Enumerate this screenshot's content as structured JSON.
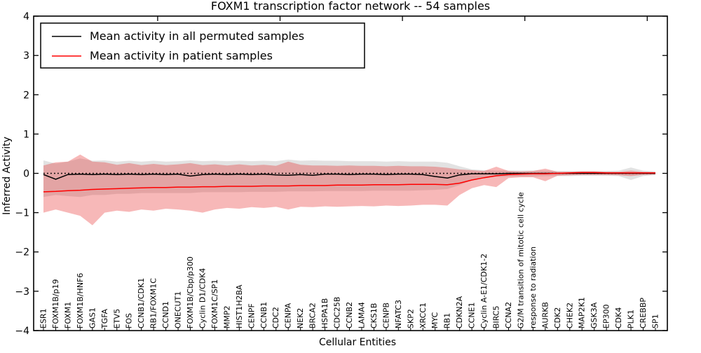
{
  "title": "FOXM1 transcription factor network -- 54 samples",
  "axes": {
    "xlabel": "Cellular Entities",
    "ylabel": "Inferred Activity"
  },
  "legend": {
    "position": "upper left",
    "items": [
      {
        "label": "Mean activity in all permuted samples",
        "color": "#000000"
      },
      {
        "label": "Mean activity in patient samples",
        "color": "#ff0000"
      }
    ]
  },
  "chart_data": {
    "type": "line",
    "title": "FOXM1 transcription factor network -- 54 samples",
    "xlabel": "Cellular Entities",
    "ylabel": "Inferred Activity",
    "ylim": [
      -4,
      4
    ],
    "yticks": [
      4,
      3,
      2,
      1,
      0,
      -1,
      -2,
      -3,
      -4
    ],
    "ytick_labels": [
      "4",
      "3",
      "2",
      "1",
      "0",
      "−1",
      "−2",
      "−3",
      "−4"
    ],
    "grid": false,
    "legend_position": "upper left",
    "zero_reference_line": 0,
    "categories": [
      "ESR1",
      "FOXM1B/p19",
      "FOXM1",
      "FOXM1B/HNF6",
      "GAS1",
      "TGFA",
      "ETV5",
      "FOS",
      "CCNB1/CDK1",
      "RB1/FOXM1C",
      "CCND1",
      "ONECUT1",
      "FOXM1B/Cbp/p300",
      "Cyclin D1/CDK4",
      "FOXM1C/SP1",
      "MMP2",
      "HIST1H2BA",
      "CENPF",
      "CCNB1",
      "CDC2",
      "CENPA",
      "NEK2",
      "BRCA2",
      "HSPA1B",
      "CDC25B",
      "CCNB2",
      "LAMA4",
      "CKS1B",
      "CENPB",
      "NFATC3",
      "SKP2",
      "XRCC1",
      "MYC",
      "RB1",
      "CDKN2A",
      "CCNE1",
      "Cyclin A-E1/CDK1-2",
      "BIRC5",
      "CCNA2",
      "G2/M transition of mitotic cell cycle",
      "response to radiation",
      "AURKB",
      "CDK2",
      "CHEK2",
      "MAP2K1",
      "GSK3A",
      "EP300",
      "CDK4",
      "PLK1",
      "CREBBP",
      "SP1"
    ],
    "series": [
      {
        "name": "Mean activity in all permuted samples",
        "color": "#000000",
        "values": [
          -0.03,
          -0.15,
          -0.03,
          -0.02,
          -0.03,
          -0.02,
          -0.03,
          -0.02,
          -0.03,
          -0.02,
          -0.03,
          -0.02,
          -0.07,
          -0.03,
          -0.02,
          -0.03,
          -0.02,
          -0.03,
          -0.02,
          -0.04,
          -0.05,
          -0.03,
          -0.05,
          -0.02,
          -0.02,
          -0.03,
          -0.02,
          -0.02,
          -0.03,
          -0.02,
          -0.02,
          -0.03,
          -0.08,
          -0.12,
          -0.04,
          -0.01,
          -0.01,
          -0.01,
          0,
          0,
          0,
          0,
          0,
          0,
          0,
          0,
          0,
          0,
          0,
          0,
          0
        ]
      },
      {
        "name": "Mean activity in patient samples",
        "color": "#ff0000",
        "values": [
          -0.47,
          -0.46,
          -0.44,
          -0.43,
          -0.41,
          -0.4,
          -0.39,
          -0.38,
          -0.37,
          -0.36,
          -0.36,
          -0.35,
          -0.35,
          -0.34,
          -0.34,
          -0.33,
          -0.33,
          -0.33,
          -0.32,
          -0.32,
          -0.32,
          -0.31,
          -0.31,
          -0.31,
          -0.3,
          -0.3,
          -0.3,
          -0.29,
          -0.29,
          -0.29,
          -0.28,
          -0.28,
          -0.28,
          -0.29,
          -0.25,
          -0.17,
          -0.11,
          -0.06,
          -0.03,
          -0.02,
          -0.01,
          -0.01,
          0,
          0.01,
          0.02,
          0.02,
          0.01,
          0.01,
          0.01,
          0.01,
          0.01
        ]
      }
    ],
    "bands": [
      {
        "name": "permuted samples range",
        "color": "#808080",
        "opacity": 0.23,
        "upper": [
          0.33,
          0.25,
          0.3,
          0.38,
          0.32,
          0.33,
          0.3,
          0.32,
          0.3,
          0.32,
          0.3,
          0.31,
          0.33,
          0.31,
          0.32,
          0.31,
          0.32,
          0.31,
          0.32,
          0.31,
          0.35,
          0.32,
          0.33,
          0.32,
          0.32,
          0.31,
          0.31,
          0.31,
          0.3,
          0.31,
          0.3,
          0.3,
          0.3,
          0.27,
          0.18,
          0.1,
          0.08,
          0.07,
          0.07,
          0.07,
          0.07,
          0.07,
          0.06,
          0.06,
          0.06,
          0.06,
          0.06,
          0.07,
          0.15,
          0.07,
          0.05
        ],
        "lower": [
          -0.6,
          -0.55,
          -0.58,
          -0.6,
          -0.55,
          -0.55,
          -0.52,
          -0.52,
          -0.5,
          -0.5,
          -0.5,
          -0.5,
          -0.5,
          -0.48,
          -0.48,
          -0.48,
          -0.48,
          -0.47,
          -0.47,
          -0.47,
          -0.46,
          -0.46,
          -0.46,
          -0.45,
          -0.45,
          -0.45,
          -0.45,
          -0.44,
          -0.44,
          -0.44,
          -0.44,
          -0.43,
          -0.42,
          -0.4,
          -0.3,
          -0.18,
          -0.12,
          -0.09,
          -0.08,
          -0.08,
          -0.08,
          -0.07,
          -0.07,
          -0.07,
          -0.06,
          -0.06,
          -0.06,
          -0.07,
          -0.17,
          -0.07,
          -0.04
        ]
      },
      {
        "name": "patient samples range",
        "color": "#e62828",
        "opacity": 0.33,
        "upper": [
          0.2,
          0.28,
          0.3,
          0.48,
          0.3,
          0.28,
          0.22,
          0.26,
          0.21,
          0.24,
          0.21,
          0.23,
          0.26,
          0.21,
          0.23,
          0.2,
          0.23,
          0.2,
          0.22,
          0.19,
          0.3,
          0.22,
          0.2,
          0.2,
          0.19,
          0.2,
          0.19,
          0.19,
          0.18,
          0.19,
          0.18,
          0.18,
          0.17,
          0.14,
          0.1,
          0.08,
          0.06,
          0.17,
          0.06,
          0.05,
          0.06,
          0.12,
          0.04,
          0.04,
          0.05,
          0.05,
          0.04,
          0.04,
          0.07,
          0.04,
          0.03
        ],
        "lower": [
          -1.0,
          -0.92,
          -1.0,
          -1.08,
          -1.32,
          -1.0,
          -0.95,
          -0.98,
          -0.92,
          -0.95,
          -0.9,
          -0.92,
          -0.95,
          -1.0,
          -0.92,
          -0.88,
          -0.9,
          -0.86,
          -0.88,
          -0.85,
          -0.92,
          -0.85,
          -0.86,
          -0.84,
          -0.85,
          -0.84,
          -0.83,
          -0.84,
          -0.82,
          -0.83,
          -0.82,
          -0.8,
          -0.8,
          -0.82,
          -0.55,
          -0.38,
          -0.3,
          -0.35,
          -0.12,
          -0.1,
          -0.1,
          -0.2,
          -0.06,
          -0.05,
          -0.04,
          -0.04,
          -0.04,
          -0.05,
          -0.07,
          -0.04,
          -0.03
        ]
      }
    ]
  }
}
